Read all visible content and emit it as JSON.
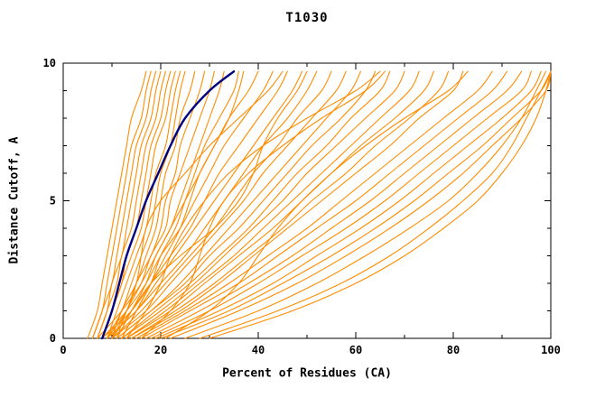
{
  "chart_data": {
    "type": "line",
    "title": "T1030",
    "xlabel": "Percent of Residues (CA)",
    "ylabel": "Distance Cutoff, A",
    "xlim": [
      0,
      100
    ],
    "ylim": [
      0,
      10
    ],
    "x_major_ticks": [
      0,
      20,
      40,
      60,
      80,
      100
    ],
    "x_minor_ticks": [
      10,
      30,
      50,
      70,
      90
    ],
    "y_major_ticks": [
      0,
      5,
      10
    ],
    "y_minor_ticks": [
      1,
      2,
      3,
      4,
      6,
      7,
      8,
      9
    ],
    "grid": false,
    "legend": false,
    "background_color": "#ffffff",
    "frame_color": "#000000",
    "series_color": "#ff8c00",
    "highlight_color": "#000080",
    "y_points": [
      0,
      1,
      2,
      3,
      4,
      5,
      6,
      7,
      8,
      9,
      9.7
    ],
    "series": [
      [
        5,
        7,
        8,
        9,
        10,
        11,
        12,
        13,
        14,
        16,
        17
      ],
      [
        6,
        8,
        9,
        10,
        11,
        12,
        13,
        14,
        16,
        17,
        18
      ],
      [
        6,
        8,
        10,
        11,
        12,
        13,
        14,
        15,
        17,
        18,
        19
      ],
      [
        7,
        9,
        10,
        12,
        13,
        14,
        15,
        16,
        18,
        19,
        20
      ],
      [
        7,
        9,
        11,
        12,
        14,
        15,
        16,
        17,
        19,
        20,
        21
      ],
      [
        8,
        10,
        12,
        13,
        15,
        16,
        17,
        18,
        20,
        21,
        22
      ],
      [
        8,
        10,
        12,
        14,
        16,
        17,
        18,
        19,
        21,
        22,
        23
      ],
      [
        9,
        11,
        13,
        15,
        17,
        18,
        19,
        21,
        22,
        23,
        24
      ],
      [
        9,
        12,
        14,
        16,
        18,
        19,
        20,
        22,
        23,
        24,
        25
      ],
      [
        10,
        12,
        15,
        17,
        19,
        20,
        21,
        23,
        24,
        26,
        27
      ],
      [
        10,
        13,
        15,
        18,
        20,
        21,
        23,
        24,
        26,
        28,
        29
      ],
      [
        11,
        13,
        16,
        18,
        21,
        22,
        24,
        26,
        28,
        30,
        31
      ],
      [
        11,
        14,
        17,
        19,
        22,
        24,
        26,
        28,
        30,
        32,
        33
      ],
      [
        12,
        15,
        18,
        20,
        23,
        25,
        27,
        29,
        32,
        35,
        36
      ],
      [
        12,
        15,
        18,
        21,
        24,
        26,
        28,
        31,
        34,
        36,
        37
      ],
      [
        9,
        13,
        15,
        16,
        17,
        20,
        25,
        30,
        36,
        42,
        45
      ],
      [
        10,
        14,
        18,
        24,
        31,
        36,
        39,
        41,
        44,
        48,
        50
      ],
      [
        13,
        17,
        20,
        22,
        25,
        29,
        34,
        41,
        50,
        60,
        65
      ],
      [
        16,
        22,
        26,
        28,
        30,
        33,
        38,
        45,
        53,
        62,
        66
      ],
      [
        21,
        30,
        36,
        40,
        44,
        49,
        55,
        62,
        70,
        79,
        83
      ],
      [
        7,
        12,
        16,
        19,
        22,
        25,
        28,
        31,
        34,
        38,
        40
      ],
      [
        8,
        13,
        17,
        20,
        24,
        27,
        30,
        33,
        37,
        41,
        43
      ],
      [
        8,
        14,
        18,
        22,
        26,
        29,
        32,
        36,
        40,
        44,
        46
      ],
      [
        9,
        15,
        19,
        23,
        27,
        31,
        35,
        39,
        43,
        47,
        49
      ],
      [
        9,
        15,
        20,
        25,
        29,
        33,
        37,
        41,
        46,
        50,
        52
      ],
      [
        10,
        16,
        21,
        26,
        31,
        35,
        39,
        44,
        48,
        53,
        55
      ],
      [
        10,
        17,
        22,
        27,
        32,
        37,
        41,
        46,
        51,
        56,
        58
      ],
      [
        11,
        18,
        24,
        29,
        34,
        39,
        44,
        49,
        54,
        59,
        61
      ],
      [
        11,
        18,
        25,
        30,
        36,
        41,
        46,
        51,
        57,
        62,
        64
      ],
      [
        12,
        19,
        26,
        32,
        38,
        43,
        48,
        54,
        59,
        65,
        67
      ],
      [
        12,
        20,
        27,
        33,
        39,
        45,
        50,
        56,
        62,
        68,
        70
      ],
      [
        13,
        21,
        28,
        35,
        41,
        47,
        53,
        59,
        65,
        71,
        73
      ],
      [
        13,
        22,
        29,
        36,
        43,
        49,
        55,
        61,
        68,
        74,
        76
      ],
      [
        14,
        23,
        31,
        38,
        45,
        51,
        58,
        64,
        71,
        77,
        79
      ],
      [
        14,
        24,
        32,
        39,
        46,
        53,
        60,
        67,
        73,
        80,
        82
      ],
      [
        15,
        25,
        34,
        42,
        50,
        57,
        64,
        71,
        78,
        85,
        88
      ],
      [
        16,
        26,
        36,
        44,
        52,
        60,
        67,
        74,
        81,
        88,
        91
      ],
      [
        17,
        28,
        38,
        47,
        55,
        63,
        70,
        77,
        84,
        91,
        94
      ],
      [
        18,
        30,
        40,
        49,
        58,
        66,
        73,
        80,
        87,
        94,
        96
      ],
      [
        19,
        32,
        43,
        52,
        61,
        69,
        76,
        83,
        90,
        96,
        98
      ],
      [
        20,
        34,
        45,
        55,
        64,
        72,
        79,
        86,
        92,
        98,
        100
      ],
      [
        22,
        36,
        48,
        58,
        67,
        75,
        82,
        88,
        94,
        99,
        100
      ],
      [
        25,
        40,
        52,
        62,
        71,
        79,
        85,
        90,
        94,
        97,
        99
      ],
      [
        28,
        44,
        57,
        67,
        75,
        82,
        88,
        92,
        95,
        98,
        100
      ],
      [
        30,
        47,
        60,
        70,
        78,
        85,
        90,
        94,
        97,
        99,
        100
      ]
    ],
    "highlight_series": [
      8,
      10,
      11.5,
      13,
      15,
      17,
      19.5,
      22,
      25,
      30,
      35
    ]
  }
}
